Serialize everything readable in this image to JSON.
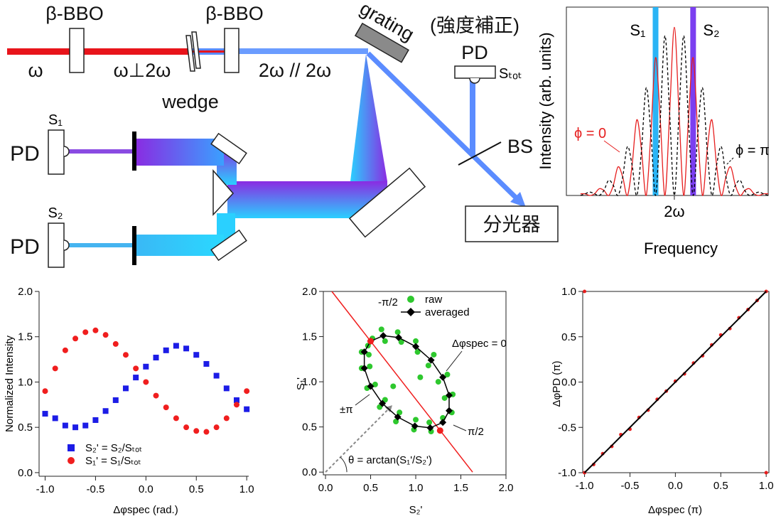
{
  "diagram": {
    "bbo1": "β-BBO",
    "bbo2": "β-BBO",
    "omega": "ω",
    "perp": "ω⊥2ω",
    "wedge": "wedge",
    "parallel": "2ω // 2ω",
    "grating": "grating",
    "correction": "(強度補正)",
    "pd_top": "PD",
    "s_tot": "Sₜₒₜ",
    "bs": "BS",
    "spectrometer": "分光器",
    "pd1": "PD",
    "s1": "S₁",
    "pd2": "PD",
    "s2": "S₂"
  },
  "chart_data": [
    {
      "type": "scatter",
      "xlabel": "Δφspec (rad.)",
      "ylabel": "Normalized Intensity",
      "xlim": [
        -1.06,
        1.02
      ],
      "ylim": [
        -0.04,
        2.0
      ],
      "xticks": [
        {
          "value": -1,
          "label": "-1.0"
        },
        {
          "value": -0.5,
          "label": "-0.5"
        },
        {
          "value": 0,
          "label": "0.0"
        },
        {
          "value": 0.5,
          "label": "0.5"
        },
        {
          "value": 1,
          "label": "1.0"
        }
      ],
      "yticks": [
        {
          "value": 0,
          "label": "0.0"
        },
        {
          "value": 0.5,
          "label": "0.5"
        },
        {
          "value": 1,
          "label": "1.0"
        },
        {
          "value": 1.5,
          "label": "1.5"
        },
        {
          "value": 2,
          "label": "2.0"
        }
      ],
      "x": [
        -1,
        -0.9,
        -0.8,
        -0.7,
        -0.6,
        -0.5,
        -0.4,
        -0.3,
        -0.2,
        -0.1,
        0,
        0.1,
        0.2,
        0.3,
        0.4,
        0.5,
        0.6,
        0.7,
        0.8,
        0.9,
        1
      ],
      "series": [
        {
          "name": "S₂' = S₂/Sₜₒₜ",
          "color": "#1c1ce6",
          "marker": "square",
          "values": [
            0.65,
            0.6,
            0.52,
            0.5,
            0.52,
            0.58,
            0.68,
            0.8,
            0.93,
            1.05,
            1.17,
            1.27,
            1.35,
            1.4,
            1.37,
            1.3,
            1.2,
            1.07,
            0.93,
            0.8,
            0.7
          ]
        },
        {
          "name": "S₁' = S₁/Sₜₒₜ",
          "color": "#f01e1e",
          "marker": "circle",
          "values": [
            0.9,
            1.15,
            1.35,
            1.48,
            1.55,
            1.57,
            1.52,
            1.42,
            1.3,
            1.15,
            1.0,
            0.85,
            0.72,
            0.6,
            0.5,
            0.46,
            0.45,
            0.5,
            0.6,
            0.75,
            0.9
          ]
        }
      ]
    },
    {
      "type": "scatter",
      "xlabel": "S₂'",
      "ylabel": "S₁'",
      "box": true,
      "xlim": [
        -0.024,
        2.0
      ],
      "ylim": [
        -0.03,
        2.0
      ],
      "xticks": [
        {
          "value": 0,
          "label": "0.0"
        },
        {
          "value": 0.5,
          "label": "0.5"
        },
        {
          "value": 1,
          "label": "1.0"
        },
        {
          "value": 1.5,
          "label": "1.5"
        },
        {
          "value": 2,
          "label": "2.0"
        }
      ],
      "yticks": [
        {
          "value": 0,
          "label": "0.0"
        },
        {
          "value": 0.5,
          "label": "0.5"
        },
        {
          "value": 1,
          "label": "1.0"
        },
        {
          "value": 1.5,
          "label": "1.5"
        },
        {
          "value": 2,
          "label": "2.0"
        }
      ],
      "series": [
        {
          "name": "raw",
          "color": "#2ec82e",
          "marker": "circle",
          "x": [
            0.52,
            0.47,
            0.62,
            0.66,
            0.8,
            0.84,
            1.0,
            1.02,
            1.2,
            1.14,
            1.35,
            1.25,
            1.41,
            1.32,
            1.4,
            1.3,
            1.17,
            1.15,
            0.98,
            1.0,
            0.78,
            0.82,
            0.6,
            0.66,
            0.46,
            0.55,
            0.4,
            0.49,
            0.4,
            0.48,
            0.75,
            1.05
          ],
          "values": [
            1.48,
            1.4,
            1.58,
            1.45,
            1.55,
            1.44,
            1.45,
            1.33,
            1.3,
            1.18,
            1.08,
            1.0,
            0.86,
            0.82,
            0.66,
            0.6,
            0.45,
            0.55,
            0.47,
            0.58,
            0.56,
            0.66,
            0.72,
            0.8,
            0.93,
            0.97,
            1.15,
            1.17,
            1.33,
            1.3,
            0.95,
            1.05
          ]
        },
        {
          "name": "averaged",
          "color": "#000000",
          "marker": "diamond",
          "line": true,
          "x": [
            0.5,
            0.64,
            0.81,
            1.0,
            1.17,
            1.3,
            1.37,
            1.37,
            1.3,
            1.16,
            0.99,
            0.8,
            0.63,
            0.5,
            0.43,
            0.43
          ],
          "values": [
            1.45,
            1.51,
            1.49,
            1.39,
            1.24,
            1.05,
            0.85,
            0.68,
            0.55,
            0.49,
            0.51,
            0.61,
            0.76,
            0.95,
            1.15,
            1.33
          ]
        }
      ],
      "ref_line": {
        "color": "#f01e1e",
        "x": [
          0.07,
          1.63
        ],
        "values": [
          2,
          0
        ]
      },
      "highlight": {
        "color": "#f01e1e",
        "x": [
          0.5,
          1.27
        ],
        "values": [
          1.45,
          0.46
        ]
      },
      "annotations": [
        "-π/2",
        "Δφspec = 0",
        "π/2",
        "±π",
        "θ = arctan(S₁'/S₂')"
      ]
    },
    {
      "type": "scatter",
      "xlabel": "Δφspec (π)",
      "ylabel": "ΔφPD (π)",
      "box": true,
      "xlim": [
        -1.02,
        1.03
      ],
      "ylim": [
        -1.0,
        1.0
      ],
      "xticks": [
        {
          "value": -1,
          "label": "-1.0"
        },
        {
          "value": -0.5,
          "label": "-0.5"
        },
        {
          "value": 0,
          "label": "0.0"
        },
        {
          "value": 0.5,
          "label": "0.5"
        },
        {
          "value": 1,
          "label": "1.0"
        }
      ],
      "yticks": [
        {
          "value": -1,
          "label": "-1.0"
        },
        {
          "value": -0.5,
          "label": "-0.5"
        },
        {
          "value": 0,
          "label": "0.0"
        },
        {
          "value": 0.5,
          "label": "0.5"
        },
        {
          "value": 1,
          "label": "1.0"
        }
      ],
      "series": [
        {
          "color": "#e61e1e",
          "marker": "circle",
          "x": [
            -1,
            -0.9,
            -0.8,
            -0.7,
            -0.6,
            -0.5,
            -0.4,
            -0.3,
            -0.2,
            -0.1,
            0,
            0.1,
            0.2,
            0.3,
            0.4,
            0.5,
            0.6,
            0.7,
            0.8,
            0.9,
            1,
            1,
            -1
          ],
          "values": [
            -1,
            -0.91,
            -0.79,
            -0.71,
            -0.58,
            -0.52,
            -0.39,
            -0.31,
            -0.19,
            -0.1,
            0.01,
            0.09,
            0.21,
            0.29,
            0.41,
            0.52,
            0.59,
            0.71,
            0.8,
            0.9,
            1,
            -1,
            1
          ]
        }
      ],
      "fit": {
        "color": "#000000",
        "x": [
          -1,
          1
        ],
        "values": [
          -1,
          1
        ]
      }
    },
    {
      "type": "line",
      "xlabel": "Frequency",
      "ylabel": "Intensity (arb. units)",
      "box": true,
      "xlim": [
        -1.15,
        1
      ],
      "ylim": [
        0,
        1.12
      ],
      "xticks": [
        {
          "value": 0,
          "label": "2ω"
        }
      ],
      "x": [
        -1,
        -0.95,
        -0.9,
        -0.85,
        -0.8,
        -0.75,
        -0.7,
        -0.65,
        -0.6,
        -0.55,
        -0.5,
        -0.45,
        -0.4,
        -0.35,
        -0.3,
        -0.25,
        -0.2,
        -0.15,
        -0.1,
        -0.05,
        0,
        0.05,
        0.1,
        0.15,
        0.2,
        0.25,
        0.3,
        0.35,
        0.4,
        0.45,
        0.5,
        0.55,
        0.6,
        0.65,
        0.7,
        0.75,
        0.8,
        0.85,
        0.9,
        0.95,
        1
      ],
      "series": [
        {
          "name": "ϕ = 0",
          "color": "#e61e1e",
          "values": [
            0.01,
            0.01,
            0,
            0.01,
            0.04,
            0.03,
            0,
            0.06,
            0.17,
            0.11,
            0,
            0.18,
            0.45,
            0.27,
            0,
            0.37,
            0.82,
            0.45,
            0,
            0.49,
            1,
            0.49,
            0,
            0.45,
            0.82,
            0.37,
            0,
            0.27,
            0.45,
            0.18,
            0,
            0.11,
            0.17,
            0.06,
            0,
            0.03,
            0.04,
            0.01,
            0,
            0.01,
            0.01
          ]
        },
        {
          "name": "ϕ = π",
          "color": "#000000",
          "dash": true,
          "values": [
            0,
            0.01,
            0.02,
            0.01,
            0,
            0.03,
            0.09,
            0.06,
            0,
            0.11,
            0.29,
            0.18,
            0,
            0.27,
            0.64,
            0.37,
            0,
            0.45,
            0.95,
            0.49,
            0,
            0.49,
            0.95,
            0.45,
            0,
            0.37,
            0.64,
            0.27,
            0,
            0.18,
            0.29,
            0.11,
            0,
            0.06,
            0.09,
            0.03,
            0,
            0.01,
            0.02,
            0.01,
            0
          ]
        }
      ],
      "bands": [
        {
          "name": "S₁",
          "x": -0.2,
          "color": "#2ab4f5"
        },
        {
          "name": "S₂",
          "x": 0.2,
          "color": "#7b3ff0"
        }
      ]
    }
  ]
}
